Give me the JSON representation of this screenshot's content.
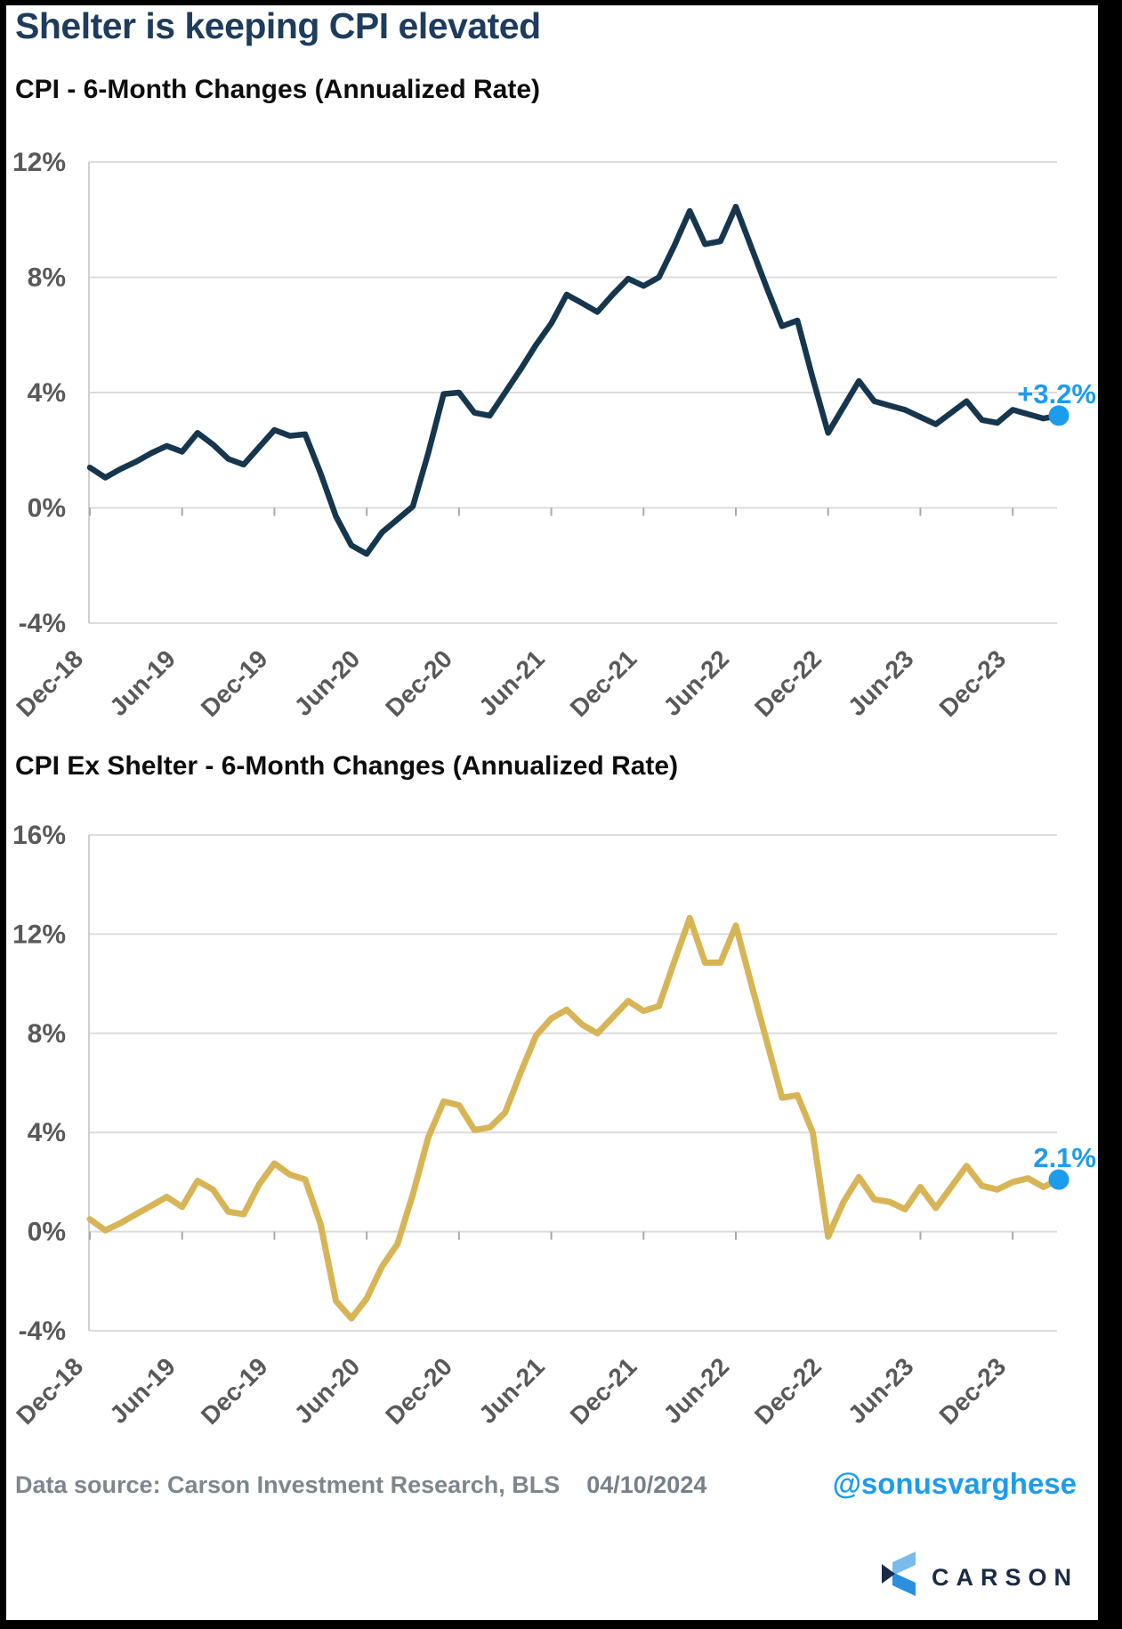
{
  "header": {
    "title": "Shelter is keeping CPI elevated"
  },
  "colors": {
    "title_navy": "#1E3C5C",
    "accent_blue": "#1C9CEC",
    "cpi_line": "#16364E",
    "cpi_ex_shelter_line": "#D7B556",
    "axis_text": "#595959",
    "gridline": "#DCDCDC",
    "axis_line": "#CFCFCF",
    "tick_mark": "#A8A8A8",
    "footer_gray": "#7D868E",
    "brand_navy": "#1B2B45",
    "logo_light_blue": "#79BCEC",
    "logo_mid_blue": "#2B8FE0"
  },
  "footer": {
    "source": "Data source: Carson Investment Research, BLS",
    "date": "04/10/2024",
    "handle": "@sonusvarghese",
    "brand": "CARSON"
  },
  "chart_data": [
    {
      "type": "line",
      "title": "CPI - 6-Month Changes (Annualized Rate)",
      "series_name": "CPI 6-month change, annualized",
      "line_color": "#16364E",
      "ylim": [
        -4,
        12
      ],
      "ytick_step": 4,
      "y_tick_labels": [
        "12%",
        "8%",
        "4%",
        "0%",
        "-4%"
      ],
      "x_tick_labels": [
        "Dec-18",
        "Jun-19",
        "Dec-19",
        "Jun-20",
        "Dec-20",
        "Jun-21",
        "Dec-21",
        "Jun-22",
        "Dec-22",
        "Jun-23",
        "Dec-23"
      ],
      "grid": true,
      "legend": "none",
      "end_label": "+3.2%",
      "end_value": 3.2,
      "categories": [
        "Dec-18",
        "Jan-19",
        "Feb-19",
        "Mar-19",
        "Apr-19",
        "May-19",
        "Jun-19",
        "Jul-19",
        "Aug-19",
        "Sep-19",
        "Oct-19",
        "Nov-19",
        "Dec-19",
        "Jan-20",
        "Feb-20",
        "Mar-20",
        "Apr-20",
        "May-20",
        "Jun-20",
        "Jul-20",
        "Aug-20",
        "Sep-20",
        "Oct-20",
        "Nov-20",
        "Dec-20",
        "Jan-21",
        "Feb-21",
        "Mar-21",
        "Apr-21",
        "May-21",
        "Jun-21",
        "Jul-21",
        "Aug-21",
        "Sep-21",
        "Oct-21",
        "Nov-21",
        "Dec-21",
        "Jan-22",
        "Feb-22",
        "Mar-22",
        "Apr-22",
        "May-22",
        "Jun-22",
        "Jul-22",
        "Aug-22",
        "Sep-22",
        "Oct-22",
        "Nov-22",
        "Dec-22",
        "Jan-23",
        "Feb-23",
        "Mar-23",
        "Apr-23",
        "May-23",
        "Jun-23",
        "Jul-23",
        "Aug-23",
        "Sep-23",
        "Oct-23",
        "Nov-23",
        "Dec-23",
        "Jan-24",
        "Feb-24",
        "Mar-24"
      ],
      "values": [
        1.4,
        1.05,
        1.35,
        1.6,
        1.9,
        2.15,
        1.95,
        2.6,
        2.2,
        1.7,
        1.5,
        2.1,
        2.7,
        2.5,
        2.55,
        1.2,
        -0.3,
        -1.3,
        -1.6,
        -0.85,
        -0.4,
        0.05,
        1.9,
        3.95,
        4.0,
        3.3,
        3.2,
        4.0,
        4.8,
        5.65,
        6.4,
        7.4,
        7.1,
        6.8,
        7.4,
        7.95,
        7.7,
        8.0,
        9.1,
        10.3,
        9.15,
        9.25,
        10.45,
        9.05,
        7.65,
        6.3,
        6.5,
        4.5,
        2.6,
        3.5,
        4.4,
        3.7,
        3.55,
        3.4,
        3.15,
        2.9,
        3.3,
        3.7,
        3.05,
        2.95,
        3.4,
        3.25,
        3.1,
        3.2
      ]
    },
    {
      "type": "line",
      "title": "CPI Ex Shelter - 6-Month Changes (Annualized Rate)",
      "series_name": "CPI ex shelter 6-month change, annualized",
      "line_color": "#D7B556",
      "ylim": [
        -4,
        16
      ],
      "ytick_step": 4,
      "y_tick_labels": [
        "16%",
        "12%",
        "8%",
        "4%",
        "0%",
        "-4%"
      ],
      "x_tick_labels": [
        "Dec-18",
        "Jun-19",
        "Dec-19",
        "Jun-20",
        "Dec-20",
        "Jun-21",
        "Dec-21",
        "Jun-22",
        "Dec-22",
        "Jun-23",
        "Dec-23"
      ],
      "grid": true,
      "legend": "none",
      "end_label": "2.1%",
      "end_value": 2.1,
      "categories": [
        "Dec-18",
        "Jan-19",
        "Feb-19",
        "Mar-19",
        "Apr-19",
        "May-19",
        "Jun-19",
        "Jul-19",
        "Aug-19",
        "Sep-19",
        "Oct-19",
        "Nov-19",
        "Dec-19",
        "Jan-20",
        "Feb-20",
        "Mar-20",
        "Apr-20",
        "May-20",
        "Jun-20",
        "Jul-20",
        "Aug-20",
        "Sep-20",
        "Oct-20",
        "Nov-20",
        "Dec-20",
        "Jan-21",
        "Feb-21",
        "Mar-21",
        "Apr-21",
        "May-21",
        "Jun-21",
        "Jul-21",
        "Aug-21",
        "Sep-21",
        "Oct-21",
        "Nov-21",
        "Dec-21",
        "Jan-22",
        "Feb-22",
        "Mar-22",
        "Apr-22",
        "May-22",
        "Jun-22",
        "Jul-22",
        "Aug-22",
        "Sep-22",
        "Oct-22",
        "Nov-22",
        "Dec-22",
        "Jan-23",
        "Feb-23",
        "Mar-23",
        "Apr-23",
        "May-23",
        "Jun-23",
        "Jul-23",
        "Aug-23",
        "Sep-23",
        "Oct-23",
        "Nov-23",
        "Dec-23",
        "Jan-24",
        "Feb-24",
        "Mar-24"
      ],
      "values": [
        0.5,
        0.05,
        0.35,
        0.7,
        1.05,
        1.4,
        1.0,
        2.05,
        1.7,
        0.8,
        0.7,
        1.9,
        2.75,
        2.3,
        2.1,
        0.3,
        -2.8,
        -3.5,
        -2.7,
        -1.4,
        -0.5,
        1.5,
        3.8,
        5.25,
        5.1,
        4.1,
        4.2,
        4.8,
        6.4,
        7.9,
        8.6,
        8.95,
        8.35,
        8.0,
        8.65,
        9.3,
        8.9,
        9.1,
        10.9,
        12.65,
        10.85,
        10.85,
        12.35,
        10.0,
        7.7,
        5.4,
        5.5,
        4.0,
        -0.2,
        1.2,
        2.2,
        1.3,
        1.2,
        0.9,
        1.8,
        0.95,
        1.8,
        2.65,
        1.85,
        1.7,
        2.0,
        2.15,
        1.8,
        2.1
      ]
    }
  ]
}
